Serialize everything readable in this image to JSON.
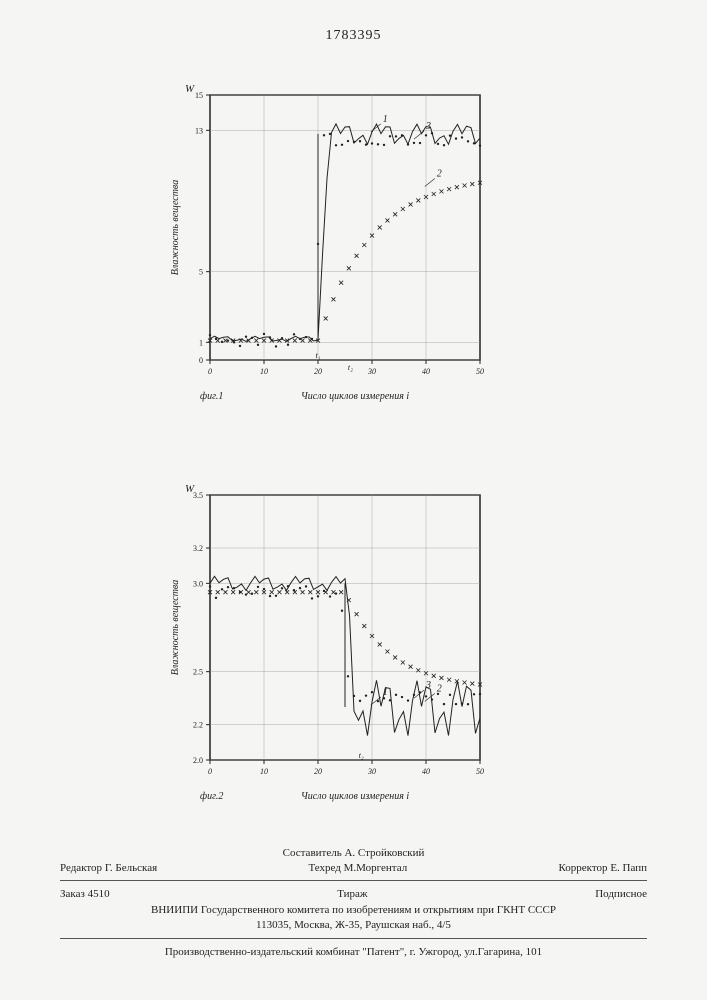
{
  "doc_number": "1783395",
  "chart1": {
    "type": "line",
    "caption_left": "фиг.1",
    "xlabel": "Число циклов измерения i",
    "ylabel": "Влажность вещества",
    "ysymbol": "W",
    "xlim": [
      0,
      50
    ],
    "ylim": [
      0,
      15
    ],
    "xtick_labels": [
      "0",
      "10",
      "20",
      "30",
      "40",
      "50"
    ],
    "ytick_labels": [
      "0",
      "1",
      "5",
      "13",
      "15"
    ],
    "ytick_vals": [
      0,
      1,
      5,
      13,
      15
    ],
    "series_color": "#222",
    "grid_color": "#999",
    "series": {
      "s1": {
        "label": "1",
        "type": "jagged",
        "start_y": 1.2,
        "jump_x": 20,
        "end_y": 12.8,
        "noise": 1.1
      },
      "s2": {
        "label": "2",
        "type": "crosses",
        "start_y": 1.1,
        "jump_x": 20,
        "end_y": 10.5,
        "lag": true
      },
      "s3": {
        "label": "3",
        "type": "dots",
        "start_y": 1.1,
        "jump_x": 19,
        "end_y": 12.5,
        "lag": false
      }
    },
    "t_markers": [
      "t₁",
      "t₂"
    ],
    "t_x": [
      20,
      26
    ]
  },
  "chart2": {
    "type": "line",
    "caption_left": "фиг.2",
    "xlabel": "Число циклов измерения i",
    "ylabel": "Влажность вещества",
    "ysymbol": "W",
    "xlim": [
      0,
      50
    ],
    "ylim": [
      2.0,
      3.5
    ],
    "xtick_labels": [
      "0",
      "10",
      "20",
      "30",
      "40",
      "50"
    ],
    "ytick_labels": [
      "2.0",
      "2.2",
      "2.5",
      "3.0",
      "3.2",
      "3.5"
    ],
    "ytick_vals": [
      2.0,
      2.2,
      2.5,
      3.0,
      3.2,
      3.5
    ],
    "series_color": "#222",
    "grid_color": "#999",
    "series": {
      "s1": {
        "label": "1",
        "type": "jagged",
        "start_y": 3.0,
        "jump_x": 25,
        "end_y": 2.3,
        "noise": 0.3
      },
      "s2": {
        "label": "2",
        "type": "crosses",
        "start_y": 2.95,
        "jump_x": 25,
        "end_y": 2.4,
        "lag": true
      },
      "s3": {
        "label": "3",
        "type": "dots",
        "start_y": 2.95,
        "jump_x": 24,
        "end_y": 2.35,
        "lag": false
      }
    },
    "t_markers": [
      "t₂"
    ],
    "t_x": [
      28
    ]
  },
  "footer": {
    "compiler": "Составитель А. Стройковский",
    "editor_label": "Редактор",
    "editor": "Г. Бельская",
    "techred_label": "Техред",
    "techred": "М.Моргентал",
    "corrector_label": "Корректор",
    "corrector": "Е. Папп",
    "order_label": "Заказ",
    "order": "4510",
    "tirazh": "Тираж",
    "subscribe": "Подписное",
    "org": "ВНИИПИ Государственного комитета по изобретениям и открытиям при ГКНТ СССР",
    "addr": "113035, Москва, Ж-35, Раушская наб., 4/5",
    "printer": "Производственно-издательский комбинат \"Патент\", г. Ужгород, ул.Гагарина, 101"
  }
}
